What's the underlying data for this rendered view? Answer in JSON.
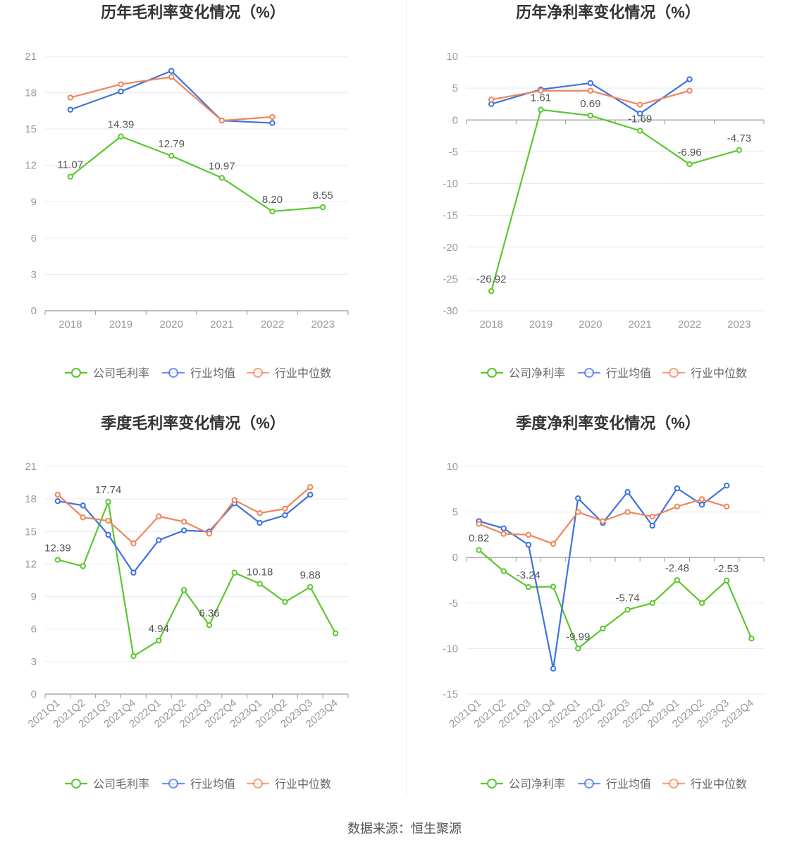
{
  "footer": "数据来源：恒生聚源",
  "colors": {
    "company": "#5cc72f",
    "avg": "#3f72e0",
    "median": "#f0855a"
  },
  "chart_data": [
    {
      "type": "line",
      "title": "历年毛利率变化情况（%）",
      "categories": [
        "2018",
        "2019",
        "2020",
        "2021",
        "2022",
        "2023"
      ],
      "ylim": [
        0,
        21
      ],
      "yticks": [
        0,
        3,
        6,
        9,
        12,
        15,
        18,
        21
      ],
      "grid": true,
      "legend": "bottom",
      "series": [
        {
          "name": "公司毛利率",
          "key": "company",
          "values": [
            11.07,
            14.39,
            12.79,
            10.97,
            8.2,
            8.55
          ],
          "labels": [
            "11.07",
            "14.39",
            "12.79",
            "10.97",
            "8.20",
            "8.55"
          ]
        },
        {
          "name": "行业均值",
          "key": "avg",
          "values": [
            16.6,
            18.1,
            19.8,
            15.7,
            15.5,
            null
          ]
        },
        {
          "name": "行业中位数",
          "key": "median",
          "values": [
            17.6,
            18.7,
            19.3,
            15.7,
            16.0,
            null
          ]
        }
      ]
    },
    {
      "type": "line",
      "title": "历年净利率变化情况（%）",
      "categories": [
        "2018",
        "2019",
        "2020",
        "2021",
        "2022",
        "2023"
      ],
      "ylim": [
        -30,
        10
      ],
      "yticks": [
        -30,
        -25,
        -20,
        -15,
        -10,
        -5,
        0,
        5,
        10
      ],
      "grid": true,
      "legend": "bottom",
      "series": [
        {
          "name": "公司净利率",
          "key": "company",
          "values": [
            -26.92,
            1.61,
            0.69,
            -1.69,
            -6.96,
            -4.73
          ],
          "labels": [
            "-26.92",
            "1.61",
            "0.69",
            "-1.69",
            "-6.96",
            "-4.73"
          ]
        },
        {
          "name": "行业均值",
          "key": "avg",
          "values": [
            2.5,
            4.8,
            5.8,
            1.0,
            6.4,
            null
          ]
        },
        {
          "name": "行业中位数",
          "key": "median",
          "values": [
            3.2,
            4.6,
            4.6,
            2.4,
            4.6,
            null
          ]
        }
      ]
    },
    {
      "type": "line",
      "title": "季度毛利率变化情况（%）",
      "categories": [
        "2021Q1",
        "2021Q2",
        "2021Q3",
        "2021Q4",
        "2022Q1",
        "2022Q2",
        "2022Q3",
        "2022Q4",
        "2023Q1",
        "2023Q2",
        "2023Q3",
        "2023Q4"
      ],
      "ylim": [
        0,
        21
      ],
      "yticks": [
        0,
        3,
        6,
        9,
        12,
        15,
        18,
        21
      ],
      "grid": true,
      "legend": "bottom",
      "series": [
        {
          "name": "公司毛利率",
          "key": "company",
          "values": [
            12.39,
            11.8,
            17.74,
            3.5,
            4.94,
            9.6,
            6.36,
            11.2,
            10.18,
            8.5,
            9.88,
            5.6
          ],
          "labels": [
            "12.39",
            "",
            "17.74",
            "",
            "4.94",
            "",
            "6.36",
            "",
            "10.18",
            "",
            "9.88",
            ""
          ]
        },
        {
          "name": "行业均值",
          "key": "avg",
          "values": [
            17.8,
            17.4,
            14.7,
            11.2,
            14.2,
            15.1,
            15.0,
            17.6,
            15.8,
            16.5,
            18.4,
            null
          ]
        },
        {
          "name": "行业中位数",
          "key": "median",
          "values": [
            18.4,
            16.3,
            16.0,
            13.9,
            16.4,
            15.9,
            14.8,
            17.9,
            16.7,
            17.1,
            19.1,
            null
          ]
        }
      ]
    },
    {
      "type": "line",
      "title": "季度净利率变化情况（%）",
      "categories": [
        "2021Q1",
        "2021Q2",
        "2021Q3",
        "2021Q4",
        "2022Q1",
        "2022Q2",
        "2022Q3",
        "2022Q4",
        "2023Q1",
        "2023Q2",
        "2023Q3",
        "2023Q4"
      ],
      "ylim": [
        -15,
        10
      ],
      "yticks": [
        -15,
        -10,
        -5,
        0,
        5,
        10
      ],
      "grid": true,
      "legend": "bottom",
      "series": [
        {
          "name": "公司净利率",
          "key": "company",
          "values": [
            0.82,
            -1.5,
            -3.24,
            -3.2,
            -9.99,
            -7.8,
            -5.74,
            -5.0,
            -2.48,
            -5.0,
            -2.53,
            -8.9
          ],
          "labels": [
            "0.82",
            "",
            "-3.24",
            "",
            "-9.99",
            "",
            "-5.74",
            "",
            "-2.48",
            "",
            "-2.53",
            ""
          ]
        },
        {
          "name": "行业均值",
          "key": "avg",
          "values": [
            4.0,
            3.2,
            1.4,
            -12.2,
            6.5,
            3.8,
            7.2,
            3.5,
            7.6,
            5.8,
            7.9,
            null
          ]
        },
        {
          "name": "行业中位数",
          "key": "median",
          "values": [
            3.7,
            2.6,
            2.5,
            1.5,
            5.0,
            4.0,
            5.0,
            4.5,
            5.6,
            6.4,
            5.6,
            null
          ]
        }
      ]
    }
  ]
}
